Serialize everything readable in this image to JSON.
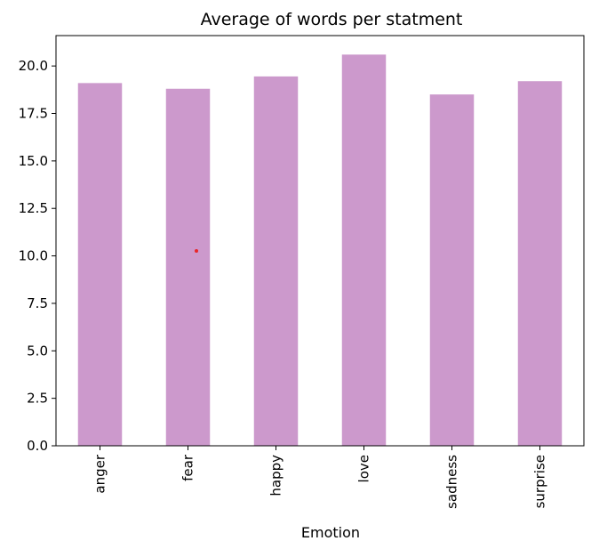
{
  "chart_data": {
    "type": "bar",
    "title": "Average of words per statment",
    "xlabel": "Emotion",
    "ylabel": "",
    "categories": [
      "anger",
      "fear",
      "happy",
      "love",
      "sadness",
      "surprise"
    ],
    "values": [
      19.1,
      18.8,
      19.45,
      20.6,
      18.5,
      19.2
    ],
    "ylim": [
      0,
      21.6
    ],
    "yticks": [
      "0.0",
      "2.5",
      "5.0",
      "7.5",
      "10.0",
      "12.5",
      "15.0",
      "17.5",
      "20.0"
    ],
    "bar_color": "#cc99cc",
    "grid": false,
    "legend": "none"
  }
}
